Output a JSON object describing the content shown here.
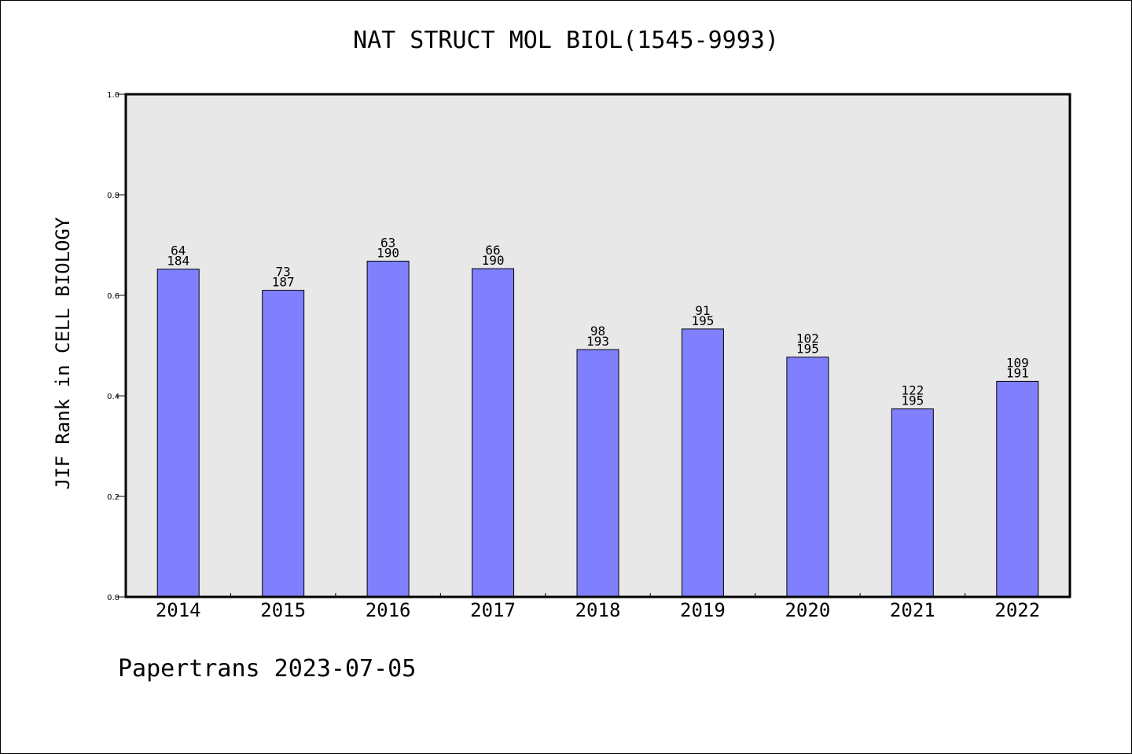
{
  "chart_data": {
    "type": "bar",
    "title": "NAT STRUCT MOL BIOL(1545-9993)",
    "xlabel": "",
    "ylabel": "JIF Rank in CELL BIOLOGY",
    "ylim": [
      0,
      1.0
    ],
    "yticks": [
      "0.0",
      "0.2",
      "0.4",
      "0.6",
      "0.8",
      "1.0"
    ],
    "categories": [
      "2014",
      "2015",
      "2016",
      "2017",
      "2018",
      "2019",
      "2020",
      "2021",
      "2022"
    ],
    "values": [
      0.652,
      0.61,
      0.668,
      0.653,
      0.492,
      0.533,
      0.477,
      0.374,
      0.429
    ],
    "rank": [
      "64",
      "73",
      "63",
      "66",
      "98",
      "91",
      "102",
      "122",
      "109"
    ],
    "total": [
      "184",
      "187",
      "190",
      "190",
      "193",
      "195",
      "195",
      "195",
      "191"
    ],
    "grid": false,
    "colors": {
      "bar": "#8080ff",
      "plot_bg": "#e8e8e8"
    }
  },
  "footer": "Papertrans 2023-07-05"
}
